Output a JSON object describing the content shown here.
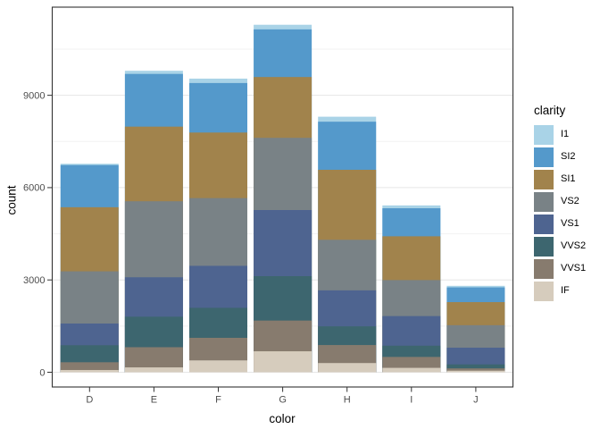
{
  "figure": {
    "background": "#FFFFFF",
    "panel_border_color": "#333333",
    "grid_major_color": "#E6E6E6",
    "grid_minor_color": "#F2F2F2",
    "tick_color": "#333333",
    "axis_text_color": "#4D4D4D"
  },
  "axes": {
    "x_title": "color",
    "y_title": "count"
  },
  "legend": {
    "title": "clarity",
    "entries": [
      "I1",
      "SI2",
      "SI1",
      "VS2",
      "VS1",
      "VVS2",
      "VVS1",
      "IF"
    ]
  },
  "chart_data": {
    "type": "bar",
    "stacked": true,
    "title": "",
    "xlabel": "color",
    "ylabel": "count",
    "categories": [
      "D",
      "E",
      "F",
      "G",
      "H",
      "I",
      "J"
    ],
    "y_ticks": [
      0,
      3000,
      6000,
      9000
    ],
    "y_minor_ticks": [
      1500,
      4500,
      7500,
      10500
    ],
    "ylim": [
      0,
      11865
    ],
    "grid": true,
    "legend_position": "right",
    "legend_title": "clarity",
    "stack_bottom_to_top": [
      "IF",
      "VVS1",
      "VVS2",
      "VS1",
      "VS2",
      "SI1",
      "SI2",
      "I1"
    ],
    "series": [
      {
        "name": "I1",
        "color": "#A9D3E7",
        "values": [
          42,
          102,
          143,
          150,
          162,
          92,
          50
        ]
      },
      {
        "name": "SI2",
        "color": "#5499CB",
        "values": [
          1370,
          1713,
          1609,
          1548,
          1563,
          912,
          479
        ]
      },
      {
        "name": "SI1",
        "color": "#A1834C",
        "values": [
          2083,
          2426,
          2131,
          1976,
          2275,
          1424,
          750
        ]
      },
      {
        "name": "VS2",
        "color": "#798286",
        "values": [
          1697,
          2470,
          2201,
          2347,
          1643,
          1169,
          731
        ]
      },
      {
        "name": "VS1",
        "color": "#4E6490",
        "values": [
          705,
          1281,
          1364,
          2148,
          1169,
          962,
          542
        ]
      },
      {
        "name": "VVS2",
        "color": "#3D666F",
        "values": [
          553,
          991,
          975,
          1443,
          608,
          365,
          131
        ]
      },
      {
        "name": "VVS1",
        "color": "#877B6E",
        "values": [
          252,
          656,
          734,
          999,
          585,
          355,
          74
        ]
      },
      {
        "name": "IF",
        "color": "#D6CCBD",
        "values": [
          73,
          158,
          385,
          681,
          299,
          143,
          51
        ]
      }
    ],
    "totals": [
      6775,
      9797,
      9542,
      11292,
      8304,
      5422,
      2808
    ]
  }
}
